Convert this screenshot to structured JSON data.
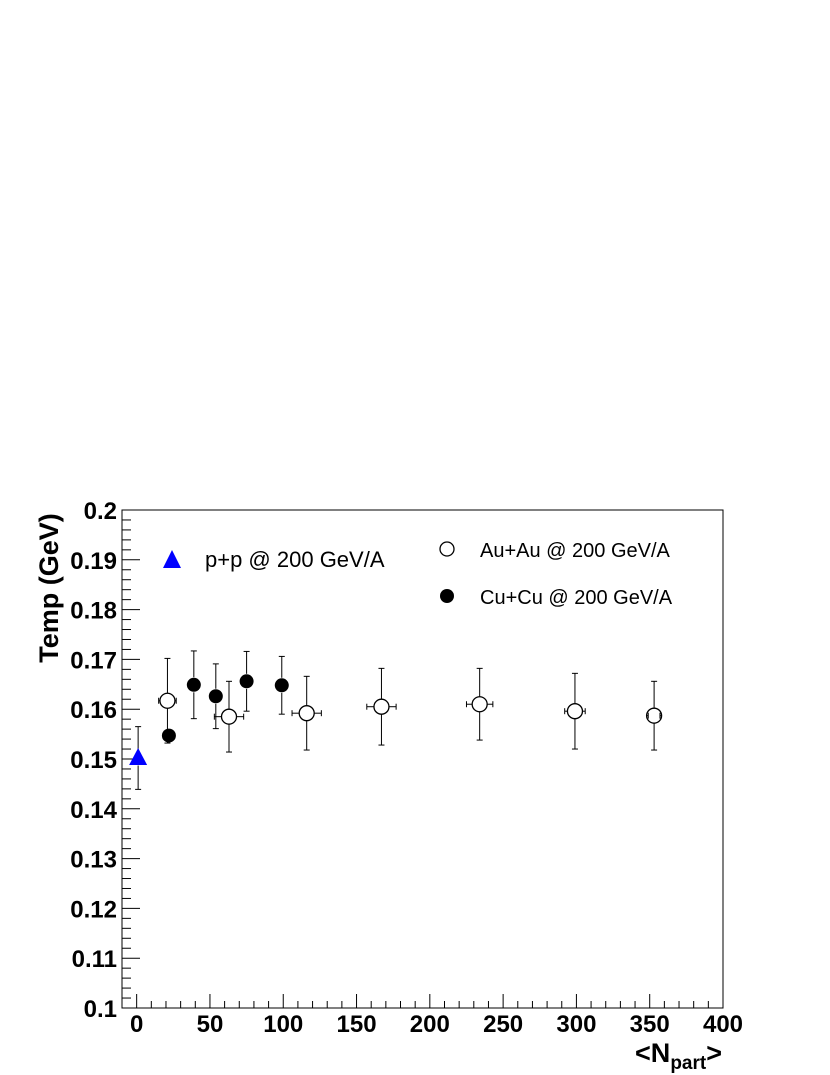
{
  "chart_data": {
    "type": "scatter",
    "xlabel": {
      "main": "<N",
      "sub": "part",
      "tail": ">"
    },
    "ylabel": "Temp (GeV)",
    "xlim": [
      -10,
      400
    ],
    "ylim": [
      0.1,
      0.2
    ],
    "x_ticks": [
      "0",
      "50",
      "100",
      "150",
      "200",
      "250",
      "300",
      "350",
      "400"
    ],
    "y_ticks": [
      "0.1",
      "0.11",
      "0.12",
      "0.13",
      "0.14",
      "0.15",
      "0.16",
      "0.17",
      "0.18",
      "0.19",
      "0.2"
    ],
    "x_tick_values": [
      0,
      50,
      100,
      150,
      200,
      250,
      300,
      350,
      400
    ],
    "y_tick_values": [
      0.1,
      0.11,
      0.12,
      0.13,
      0.14,
      0.15,
      0.16,
      0.17,
      0.18,
      0.19,
      0.2
    ],
    "grid": false,
    "series": [
      {
        "name": "p+p @ 200 GeV/A",
        "marker": "triangle",
        "color": "#0000ff",
        "points": [
          {
            "x": 1,
            "y": 0.1502,
            "yerr": 0.0063,
            "xerr": 0
          }
        ]
      },
      {
        "name": "Au+Au @ 200 GeV/A",
        "marker": "open-circle",
        "color": "#000000",
        "points": [
          {
            "x": 21,
            "y": 0.1617,
            "yerr": 0.0085,
            "xerr": 6
          },
          {
            "x": 63,
            "y": 0.1585,
            "yerr": 0.0071,
            "xerr": 10
          },
          {
            "x": 116,
            "y": 0.1592,
            "yerr": 0.0074,
            "xerr": 10
          },
          {
            "x": 167,
            "y": 0.1605,
            "yerr": 0.0077,
            "xerr": 10
          },
          {
            "x": 234,
            "y": 0.161,
            "yerr": 0.0072,
            "xerr": 9
          },
          {
            "x": 299,
            "y": 0.1596,
            "yerr": 0.0076,
            "xerr": 7
          },
          {
            "x": 353,
            "y": 0.1587,
            "yerr": 0.0069,
            "xerr": 4
          }
        ]
      },
      {
        "name": "Cu+Cu @ 200 GeV/A",
        "marker": "filled-circle",
        "color": "#000000",
        "points": [
          {
            "x": 22,
            "y": 0.1547,
            "yerr": 0,
            "xerr": 0
          },
          {
            "x": 39,
            "y": 0.1649,
            "yerr": 0.0068,
            "xerr": 0
          },
          {
            "x": 54,
            "y": 0.1626,
            "yerr": 0.0065,
            "xerr": 0
          },
          {
            "x": 75,
            "y": 0.1656,
            "yerr": 0.006,
            "xerr": 0
          },
          {
            "x": 99,
            "y": 0.1648,
            "yerr": 0.0058,
            "xerr": 0
          }
        ]
      }
    ]
  }
}
